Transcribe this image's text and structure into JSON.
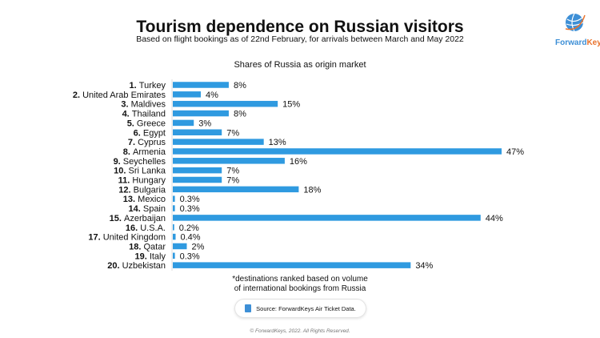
{
  "header": {
    "title": "Tourism dependence on Russian visitors",
    "subtitle": "Based on flight bookings as of 22nd February, for arrivals between March and May 2022",
    "logo_text": "ForwardKeys"
  },
  "chart_data": {
    "type": "bar",
    "orientation": "horizontal",
    "title": "Shares of Russia as origin market",
    "ranks": [
      "1.",
      "2.",
      "3.",
      "4.",
      "5.",
      "6.",
      "7.",
      "8.",
      "9.",
      "10.",
      "11.",
      "12.",
      "13.",
      "14.",
      "15.",
      "16.",
      "17.",
      "18.",
      "19.",
      "20."
    ],
    "categories": [
      "Turkey",
      "United Arab Emirates",
      "Maldives",
      "Thailand",
      "Greece",
      "Egypt",
      "Cyprus",
      "Armenia",
      "Seychelles",
      "Sri Lanka",
      "Hungary",
      "Bulgaria",
      "Mexico",
      "Spain",
      "Azerbaijan",
      "U.S.A.",
      "United Kingdom",
      "Qatar",
      "Italy",
      "Uzbekistan"
    ],
    "values": [
      8,
      4,
      15,
      8,
      3,
      7,
      13,
      47,
      16,
      7,
      7,
      18,
      0.3,
      0.3,
      44,
      0.2,
      0.4,
      2,
      0.3,
      34
    ],
    "labels": [
      "8%",
      "4%",
      "15%",
      "8%",
      "3%",
      "7%",
      "13%",
      "47%",
      "16%",
      "7%",
      "7%",
      "18%",
      "0.3%",
      "0.3%",
      "44%",
      "0.2%",
      "0.4%",
      "2%",
      "0.3%",
      "34%"
    ],
    "unit": "%",
    "xlim": [
      0,
      47
    ],
    "bar_color": "#2f9ae0"
  },
  "footer": {
    "note_line1": "*destinations ranked based on volume",
    "note_line2": "of international bookings from Russia",
    "source": "Source: ForwardKeys Air Ticket Data.",
    "copyright": "© ForwardKeys, 2022. All Rights Reserved."
  }
}
